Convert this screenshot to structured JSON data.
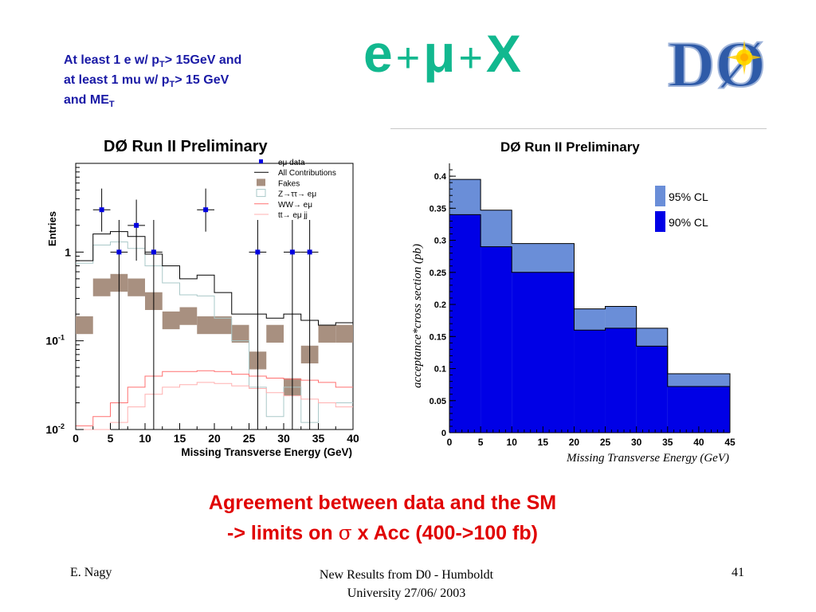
{
  "slide": {
    "cuts": {
      "line1_a": "At least 1 e  w/ p",
      "line1_sub": "T",
      "line1_b": "> 15GeV and",
      "line2_a": "at least 1 mu  w/ p",
      "line2_sub": "T",
      "line2_b": "> 15 GeV",
      "line3_a": "and ME",
      "line3_sub": "T"
    },
    "title": {
      "e": "e",
      "plus1": "+",
      "mu": "μ",
      "plus2": "+",
      "x": "X"
    },
    "logo_text": "DØ",
    "conclusion": {
      "line1": "Agreement between data and the SM",
      "line2_a": "-> limits on ",
      "line2_sigma": "σ",
      "line2_b": " x Acc (400->100 fb)"
    },
    "footer": {
      "left": "E. Nagy",
      "center_line1": "New Results from D0 - Humboldt",
      "center_line2": "University  27/06/ 2003",
      "right": "41"
    }
  },
  "chart_data": [
    {
      "type": "bar",
      "title": "DØ Run II Preliminary",
      "xlabel": "Missing Transverse Energy (GeV)",
      "ylabel": "Entries",
      "xlim": [
        0,
        40
      ],
      "ylim": [
        0.01,
        10
      ],
      "log_y": true,
      "x_ticks": [
        "0",
        "5",
        "10",
        "15",
        "20",
        "25",
        "30",
        "35",
        "40"
      ],
      "y_ticks": [
        {
          "base": "10",
          "exp": "-2",
          "value": 0.01
        },
        {
          "base": "10",
          "exp": "-1",
          "value": 0.1
        },
        {
          "base": "1",
          "exp": "",
          "value": 1
        }
      ],
      "bin_edges": [
        0,
        2.5,
        5,
        7.5,
        10,
        12.5,
        15,
        17.5,
        20,
        22.5,
        25,
        27.5,
        30,
        32.5,
        35,
        37.5,
        40
      ],
      "legend": {
        "placement": "top-right",
        "entries": [
          "eμ data",
          "All Contributions",
          "Fakes",
          "Z→ττ→ eμ",
          "WW→ eμ",
          "tt→ eμ jj"
        ]
      },
      "series": [
        {
          "name": "eμ data",
          "kind": "points",
          "x": [
            3.75,
            6.25,
            8.75,
            11.25,
            18.75,
            26.25,
            31.25,
            33.75
          ],
          "y": [
            3,
            1,
            2,
            1,
            3,
            1,
            1,
            1
          ],
          "yerr_low": [
            1.3,
            0.99,
            1.2,
            0.99,
            1.3,
            0.99,
            0.99,
            0.99
          ],
          "yerr_high": [
            2.2,
            1.3,
            1.9,
            1.3,
            2.2,
            1.3,
            1.3,
            1.3
          ]
        },
        {
          "name": "All Contributions",
          "kind": "step",
          "values": [
            0.8,
            1.6,
            1.7,
            1.5,
            0.95,
            0.7,
            0.5,
            0.55,
            0.35,
            0.2,
            0.2,
            0.18,
            0.2,
            0.17,
            0.15,
            0.16
          ]
        },
        {
          "name": "Fakes",
          "kind": "band",
          "values": [
            0.15,
            0.4,
            0.45,
            0.4,
            0.28,
            0.17,
            0.19,
            0.15,
            0.15,
            0.12,
            0.06,
            0.12,
            0.03,
            0.07,
            0.12,
            0.12
          ],
          "band_half_width_decades": 0.1
        },
        {
          "name": "Z→ττ→ eμ",
          "kind": "step",
          "values": [
            0.75,
            1.2,
            1.3,
            1.1,
            0.7,
            0.45,
            0.33,
            0.32,
            0.18,
            0.1,
            0.03,
            0.014,
            0.03,
            0.012,
            0.02,
            0.02
          ]
        },
        {
          "name": "WW→ eμ",
          "kind": "step",
          "values": [
            0.011,
            0.014,
            0.02,
            0.03,
            0.04,
            0.045,
            0.045,
            0.046,
            0.045,
            0.042,
            0.04,
            0.038,
            0.037,
            0.036,
            0.034,
            0.03
          ]
        },
        {
          "name": "tt→ eμ jj",
          "kind": "step",
          "values": [
            0.01,
            0.01,
            0.012,
            0.018,
            0.025,
            0.03,
            0.032,
            0.034,
            0.033,
            0.031,
            0.029,
            0.026,
            0.024,
            0.022,
            0.02,
            0.018
          ]
        }
      ],
      "colors": {
        "data": "#0000e0",
        "all": "#000000",
        "fakes": "#a89080",
        "ztt": "#aac8c8",
        "ww": "#ff7070",
        "tt": "#ffb0b0"
      }
    },
    {
      "type": "bar",
      "title": "DØ Run II Preliminary",
      "xlabel": "Missing Transverse Energy (GeV)",
      "ylabel": "acceptance*cross section (pb)",
      "xlim": [
        0,
        45
      ],
      "ylim": [
        0,
        0.42
      ],
      "x_ticks": [
        "0",
        "5",
        "10",
        "15",
        "20",
        "25",
        "30",
        "35",
        "40",
        "45"
      ],
      "y_ticks": [
        "0",
        "0.05",
        "0.1",
        "0.15",
        "0.2",
        "0.25",
        "0.3",
        "0.35",
        "0.4"
      ],
      "bin_edges": [
        0,
        5,
        10,
        20,
        25,
        30,
        35,
        45
      ],
      "legend": {
        "placement": "top-right",
        "entries": [
          "95% CL",
          "90% CL"
        ]
      },
      "series": [
        {
          "name": "95% CL",
          "values": [
            0.395,
            0.347,
            0.295,
            0.193,
            0.197,
            0.163,
            0.092
          ]
        },
        {
          "name": "90% CL",
          "values": [
            0.34,
            0.29,
            0.25,
            0.16,
            0.163,
            0.135,
            0.072
          ]
        }
      ],
      "colors": {
        "cl95": "#6a8ed8",
        "cl90": "#0000e6"
      }
    }
  ]
}
